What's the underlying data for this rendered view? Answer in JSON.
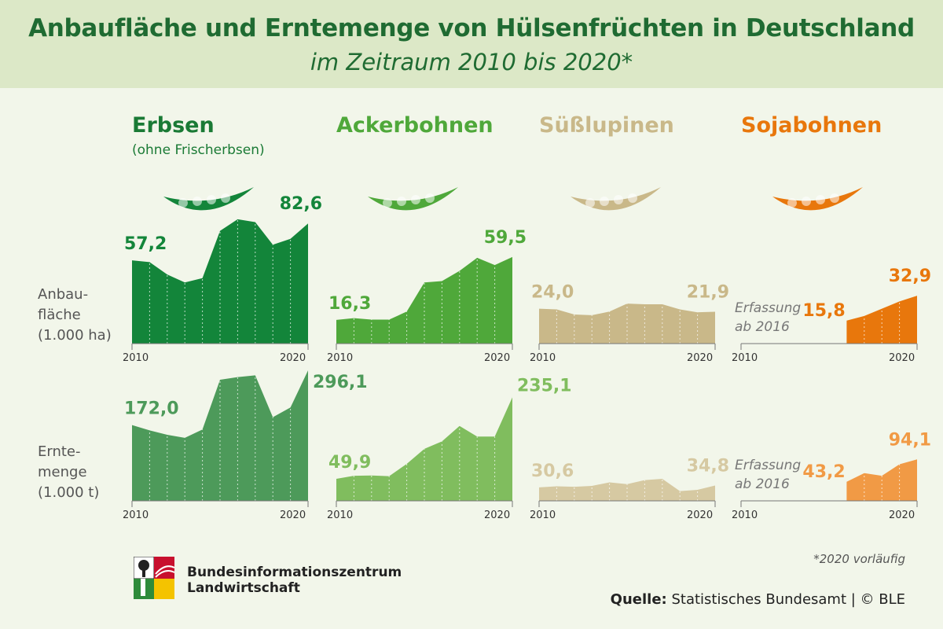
{
  "header": {
    "title": "Anbaufläche und Erntemenge von Hülsenfrüchten in Deutschland",
    "subtitle": "im Zeitraum 2010 bis 2020*"
  },
  "row_labels": {
    "area": [
      "Anbau-",
      "fläche",
      "(1.000 ha)"
    ],
    "harvest": [
      "Ernte-",
      "menge",
      "(1.000 t)"
    ]
  },
  "no_data_note": [
    "Erfassung",
    "ab 2016"
  ],
  "footnote": "*2020 vorläufig",
  "source": {
    "label": "Quelle:",
    "text": "Statistisches Bundesamt | © BLE"
  },
  "logo": {
    "line1": "Bundesinformationszentrum",
    "line2": "Landwirtschaft"
  },
  "colors": {
    "erbsen": "#13853a",
    "erbsen_light": "#4d9a5a",
    "ackerbohnen": "#4fa83a",
    "ackerbohnen_light": "#80bd5e",
    "luepinen": "#c9b889",
    "luepinen_light": "#d6c9a2",
    "soja": "#e8770c",
    "soja_light": "#f19a45"
  },
  "chart_data": [
    {
      "type": "area",
      "name": "Erbsen",
      "note": "(ohne Frischerbsen)",
      "title_color": "#1a7a35",
      "x": [
        2010,
        2011,
        2012,
        2013,
        2014,
        2015,
        2016,
        2017,
        2018,
        2019,
        2020
      ],
      "area_values": [
        57.2,
        56.0,
        47.5,
        42.0,
        45.0,
        77.5,
        85.5,
        83.5,
        68.0,
        72.0,
        82.6
      ],
      "harvest_values": [
        172.0,
        160.0,
        150.0,
        143.0,
        162.0,
        275.0,
        281.0,
        285.0,
        190.0,
        212.0,
        296.1
      ],
      "area_labels": [
        {
          "x": 2010,
          "text": "57,2"
        },
        {
          "x": 2020,
          "text": "82,6"
        }
      ],
      "harvest_labels": [
        {
          "x": 2010,
          "text": "172,0"
        },
        {
          "x": 2020,
          "text": "296,1"
        }
      ],
      "xticks": [
        "2010",
        "2020"
      ]
    },
    {
      "type": "area",
      "name": "Ackerbohnen",
      "note": "",
      "title_color": "#4fa83a",
      "x": [
        2010,
        2011,
        2012,
        2013,
        2014,
        2015,
        2016,
        2017,
        2018,
        2019,
        2020
      ],
      "area_values": [
        16.3,
        17.5,
        16.5,
        16.5,
        22.0,
        42.0,
        43.0,
        50.0,
        59.0,
        54.0,
        59.5
      ],
      "harvest_values": [
        49.9,
        57.0,
        57.5,
        56.0,
        84.0,
        118.0,
        135.0,
        170.0,
        146.0,
        146.0,
        235.1
      ],
      "area_labels": [
        {
          "x": 2010,
          "text": "16,3"
        },
        {
          "x": 2020,
          "text": "59,5"
        }
      ],
      "harvest_labels": [
        {
          "x": 2010,
          "text": "49,9"
        },
        {
          "x": 2020,
          "text": "235,1"
        }
      ],
      "xticks": [
        "2010",
        "2020"
      ]
    },
    {
      "type": "area",
      "name": "Süßlupinen",
      "note": "",
      "title_color": "#c9b889",
      "x": [
        2010,
        2011,
        2012,
        2013,
        2014,
        2015,
        2016,
        2017,
        2018,
        2019,
        2020
      ],
      "area_values": [
        24.0,
        23.5,
        20.0,
        19.5,
        22.0,
        27.5,
        27.0,
        27.0,
        23.5,
        21.5,
        21.9
      ],
      "harvest_values": [
        30.6,
        33.0,
        32.0,
        34.0,
        42.0,
        38.0,
        47.0,
        50.0,
        22.0,
        25.0,
        34.8
      ],
      "area_labels": [
        {
          "x": 2010,
          "text": "24,0"
        },
        {
          "x": 2020,
          "text": "21,9"
        }
      ],
      "harvest_labels": [
        {
          "x": 2010,
          "text": "30,6"
        },
        {
          "x": 2020,
          "text": "34,8"
        }
      ],
      "xticks": [
        "2010",
        "2020"
      ]
    },
    {
      "type": "area",
      "name": "Sojabohnen",
      "note": "",
      "title_color": "#e8770c",
      "x": [
        2016,
        2017,
        2018,
        2019,
        2020
      ],
      "area_values": [
        15.8,
        19.0,
        24.0,
        29.0,
        32.9
      ],
      "harvest_values": [
        43.2,
        63.0,
        57.0,
        83.0,
        94.1
      ],
      "area_labels": [
        {
          "x": 2016,
          "text": "15,8"
        },
        {
          "x": 2020,
          "text": "32,9"
        }
      ],
      "harvest_labels": [
        {
          "x": 2016,
          "text": "43,2"
        },
        {
          "x": 2020,
          "text": "94,1"
        }
      ],
      "xticks": [
        "2010",
        "2020"
      ]
    }
  ]
}
